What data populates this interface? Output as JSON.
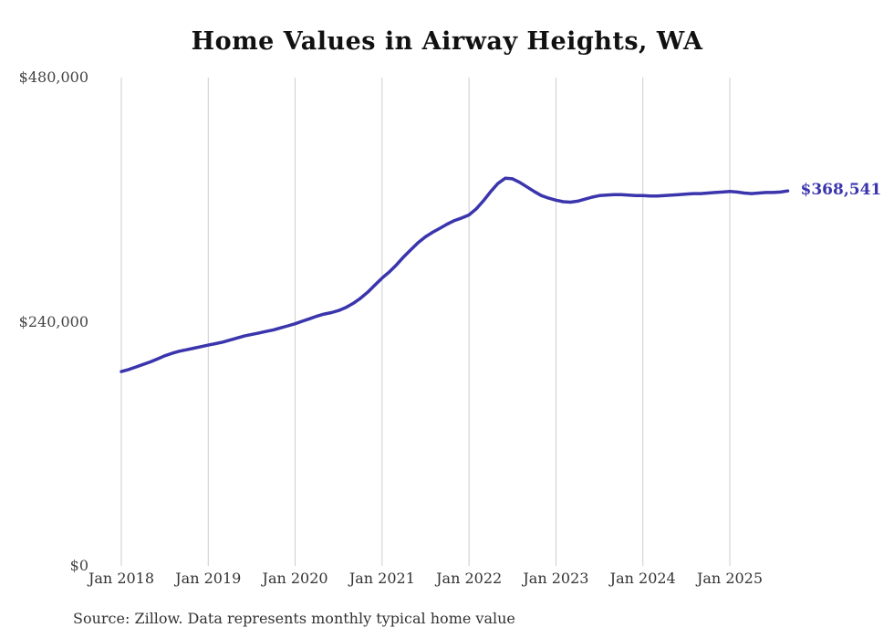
{
  "chart_data": {
    "type": "line",
    "title": "Home Values in Airway Heights, WA",
    "source_note": "Source: Zillow. Data represents monthly typical home value",
    "end_label": "$368,541",
    "end_value": 368541,
    "line_color": "#3a35ad",
    "grid_color": "#cccccc",
    "ylim": [
      0,
      480000
    ],
    "y_ticks": [
      {
        "value": 0,
        "label": "$0"
      },
      {
        "value": 240000,
        "label": "$240,000"
      },
      {
        "value": 480000,
        "label": "$480,000"
      }
    ],
    "x_tick_labels": [
      "Jan 2018",
      "Jan 2019",
      "Jan 2020",
      "Jan 2021",
      "Jan 2022",
      "Jan 2023",
      "Jan 2024",
      "Jan 2025"
    ],
    "x_start_month": "Jan 2018",
    "frequency": "monthly",
    "legend": "none",
    "grid": "vertical-only",
    "series": [
      {
        "name": "Typical home value",
        "values": [
          191000,
          193000,
          195500,
          198000,
          200500,
          203500,
          206500,
          209000,
          211000,
          212500,
          214000,
          215500,
          217000,
          218500,
          220000,
          222000,
          224000,
          226000,
          227500,
          229000,
          230500,
          232000,
          234000,
          236000,
          238000,
          240500,
          243000,
          245500,
          247500,
          249000,
          251000,
          254000,
          258000,
          263000,
          269000,
          276000,
          283000,
          289000,
          296000,
          304000,
          311000,
          318000,
          323500,
          328000,
          332000,
          336000,
          339500,
          342000,
          345000,
          351000,
          359000,
          368000,
          376000,
          381000,
          380500,
          377000,
          372500,
          368000,
          364000,
          361500,
          359500,
          358000,
          357500,
          358500,
          360500,
          362500,
          364000,
          364500,
          365000,
          365000,
          364500,
          364000,
          364000,
          363500,
          363500,
          364000,
          364500,
          365000,
          365500,
          366000,
          366000,
          366500,
          367000,
          367500,
          368000,
          367500,
          366500,
          366000,
          366500,
          367000,
          367000,
          367500,
          368541
        ]
      }
    ]
  }
}
